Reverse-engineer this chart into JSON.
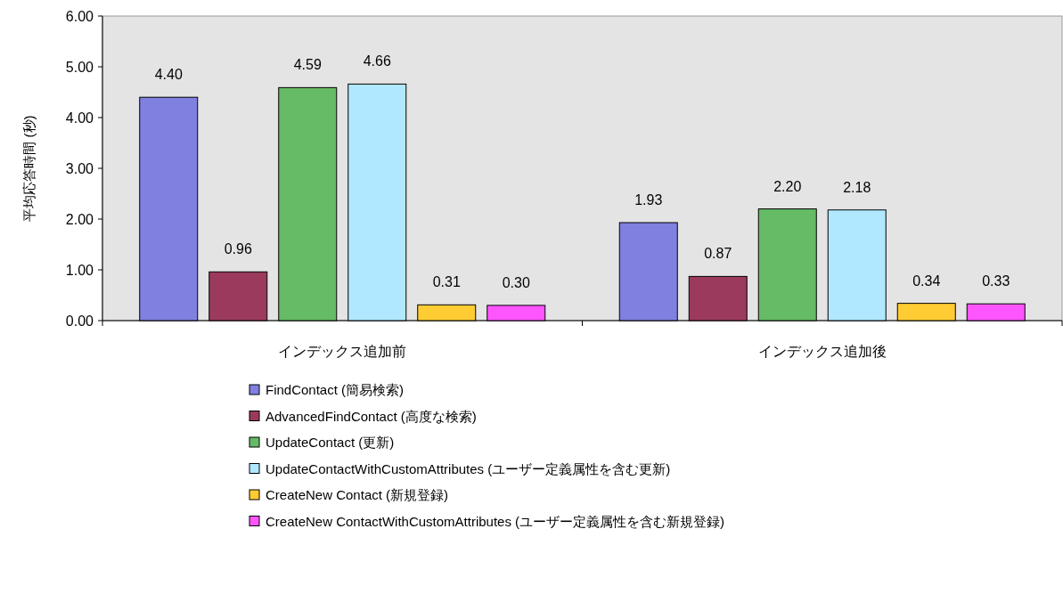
{
  "chart_data": {
    "type": "bar",
    "ylabel": "平均応答時間 (秒)",
    "categories": [
      "インデックス追加前",
      "インデックス追加後"
    ],
    "ylim": [
      0,
      6
    ],
    "yticks": [
      {
        "value": 0,
        "label": "0.00"
      },
      {
        "value": 1,
        "label": "1.00"
      },
      {
        "value": 2,
        "label": "2.00"
      },
      {
        "value": 3,
        "label": "3.00"
      },
      {
        "value": 4,
        "label": "4.00"
      },
      {
        "value": 5,
        "label": "5.00"
      },
      {
        "value": 6,
        "label": "6.00"
      }
    ],
    "grid": false,
    "legend": "bottom",
    "series": [
      {
        "name": "FindContact (簡易検索)",
        "color": "#8080e0",
        "values": [
          4.4,
          1.93
        ],
        "value_labels": [
          "4.40",
          "1.93"
        ]
      },
      {
        "name": "AdvancedFindContact (高度な検索)",
        "color": "#9b3a5c",
        "values": [
          0.96,
          0.87
        ],
        "value_labels": [
          "0.96",
          "0.87"
        ]
      },
      {
        "name": "UpdateContact (更新)",
        "color": "#66bb66",
        "values": [
          4.59,
          2.2
        ],
        "value_labels": [
          "4.59",
          "2.20"
        ]
      },
      {
        "name": "UpdateContactWithCustomAttributes (ユーザー定義属性を含む更新)",
        "color": "#b0e8ff",
        "values": [
          4.66,
          2.18
        ],
        "value_labels": [
          "4.66",
          "2.18"
        ]
      },
      {
        "name": "CreateNew Contact (新規登録)",
        "color": "#ffcc33",
        "values": [
          0.31,
          0.34
        ],
        "value_labels": [
          "0.31",
          "0.34"
        ]
      },
      {
        "name": "CreateNew ContactWithCustomAttributes (ユーザー定義属性を含む新規登録)",
        "color": "#ff55ff",
        "values": [
          0.3,
          0.33
        ],
        "value_labels": [
          "0.30",
          "0.33"
        ]
      }
    ]
  }
}
